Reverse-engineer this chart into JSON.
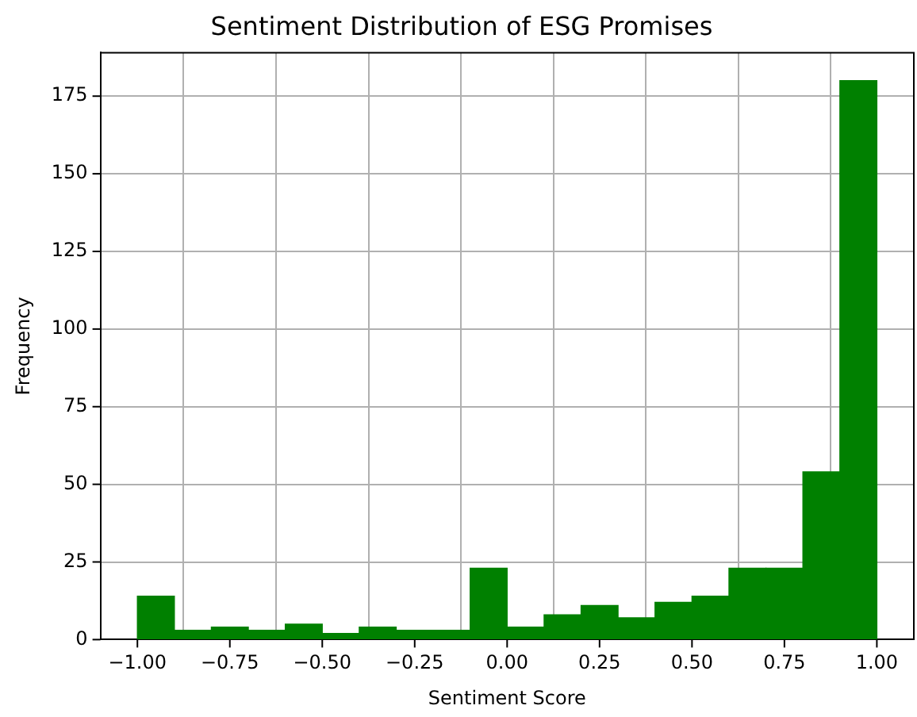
{
  "chart_data": {
    "type": "histogram",
    "title": "Sentiment Distribution of ESG Promises",
    "xlabel": "Sentiment Score",
    "ylabel": "Frequency",
    "bins": [
      -1.0,
      -0.9,
      -0.8,
      -0.7,
      -0.6,
      -0.5,
      -0.4,
      -0.3,
      -0.2,
      -0.1,
      0.0,
      0.1,
      0.2,
      0.3,
      0.4,
      0.5,
      0.6,
      0.7,
      0.8,
      0.9,
      1.0
    ],
    "values": [
      14,
      3,
      4,
      3,
      5,
      2,
      4,
      3,
      3,
      23,
      4,
      8,
      11,
      7,
      12,
      14,
      23,
      23,
      54,
      180
    ],
    "color": "#008000",
    "xlim": [
      -1.1,
      1.1
    ],
    "xticks": [
      {
        "value": -1,
        "label": "−1.00"
      },
      {
        "value": -0.75,
        "label": "−0.75"
      },
      {
        "value": -0.5,
        "label": "−0.50"
      },
      {
        "value": -0.25,
        "label": "−0.25"
      },
      {
        "value": 0,
        "label": "0.00"
      },
      {
        "value": 0.25,
        "label": "0.25"
      },
      {
        "value": 0.5,
        "label": "0.50"
      },
      {
        "value": 0.75,
        "label": "0.75"
      },
      {
        "value": 1,
        "label": "1.00"
      }
    ],
    "ylim": [
      0,
      189
    ],
    "yticks": [
      0,
      25,
      50,
      75,
      100,
      125,
      150,
      175
    ],
    "grid": true
  }
}
